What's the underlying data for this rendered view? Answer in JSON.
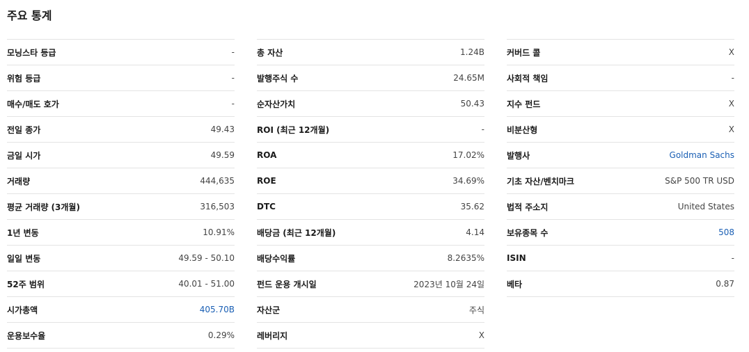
{
  "title": "주요 통계",
  "columns": [
    [
      {
        "label": "모닝스타 등급",
        "value": "-"
      },
      {
        "label": "위험 등급",
        "value": "-"
      },
      {
        "label": "매수/매도 호가",
        "value": "-"
      },
      {
        "label": "전일 종가",
        "value": "49.43"
      },
      {
        "label": "금일 시가",
        "value": "49.59"
      },
      {
        "label": "거래량",
        "value": "444,635"
      },
      {
        "label": "평균 거래량 (3개월)",
        "value": "316,503"
      },
      {
        "label": "1년 변동",
        "value": "10.91%"
      },
      {
        "label": "일일 변동",
        "value": "49.59 - 50.10"
      },
      {
        "label": "52주 범위",
        "value": "40.01 - 51.00"
      },
      {
        "label": "시가총액",
        "value": "405.70B",
        "link": true
      },
      {
        "label": "운용보수율",
        "value": "0.29%"
      }
    ],
    [
      {
        "label": "총 자산",
        "value": "1.24B"
      },
      {
        "label": "발행주식 수",
        "value": "24.65M"
      },
      {
        "label": "순자산가치",
        "value": "50.43"
      },
      {
        "label": "ROI (최근 12개월)",
        "value": "-"
      },
      {
        "label": "ROA",
        "value": "17.02%"
      },
      {
        "label": "ROE",
        "value": "34.69%"
      },
      {
        "label": "DTC",
        "value": "35.62"
      },
      {
        "label": "배당금 (최근 12개월)",
        "value": "4.14"
      },
      {
        "label": "배당수익률",
        "value": "8.2635%"
      },
      {
        "label": "펀드 운용 개시일",
        "value": "2023년 10월 24일"
      },
      {
        "label": "자산군",
        "value": "주식"
      },
      {
        "label": "레버리지",
        "value": "X"
      }
    ],
    [
      {
        "label": "커버드 콜",
        "value": "X"
      },
      {
        "label": "사회적 책임",
        "value": "-"
      },
      {
        "label": "지수 펀드",
        "value": "X"
      },
      {
        "label": "비분산형",
        "value": "X"
      },
      {
        "label": "발행사",
        "value": "Goldman Sachs",
        "link": true
      },
      {
        "label": "기초 자산/벤치마크",
        "value": "S&P 500 TR USD"
      },
      {
        "label": "법적 주소지",
        "value": "United States"
      },
      {
        "label": "보유종목 수",
        "value": "508",
        "link": true
      },
      {
        "label": "ISIN",
        "value": "-"
      },
      {
        "label": "베타",
        "value": "0.87"
      }
    ]
  ]
}
